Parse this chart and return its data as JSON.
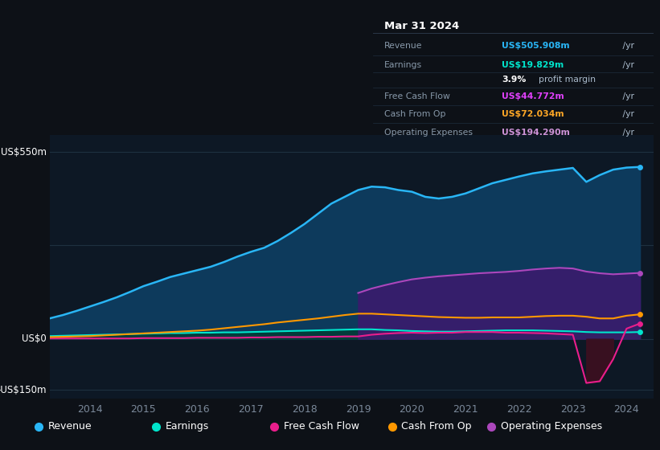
{
  "bg_color": "#0d1117",
  "chart_bg": "#0d1825",
  "title_date": "Mar 31 2024",
  "years": [
    2013.25,
    2013.5,
    2013.75,
    2014.0,
    2014.25,
    2014.5,
    2014.75,
    2015.0,
    2015.25,
    2015.5,
    2015.75,
    2016.0,
    2016.25,
    2016.5,
    2016.75,
    2017.0,
    2017.25,
    2017.5,
    2017.75,
    2018.0,
    2018.25,
    2018.5,
    2018.75,
    2019.0,
    2019.25,
    2019.5,
    2019.75,
    2020.0,
    2020.25,
    2020.5,
    2020.75,
    2021.0,
    2021.25,
    2021.5,
    2021.75,
    2022.0,
    2022.25,
    2022.5,
    2022.75,
    2023.0,
    2023.25,
    2023.5,
    2023.75,
    2024.0,
    2024.25
  ],
  "revenue": [
    60,
    70,
    82,
    95,
    108,
    122,
    138,
    155,
    168,
    182,
    192,
    202,
    212,
    226,
    242,
    256,
    268,
    288,
    312,
    338,
    368,
    398,
    418,
    438,
    448,
    446,
    438,
    433,
    418,
    413,
    418,
    428,
    443,
    458,
    468,
    478,
    487,
    493,
    498,
    503,
    462,
    482,
    498,
    504,
    506
  ],
  "earnings": [
    8,
    9,
    10,
    11,
    12,
    13,
    14,
    15,
    16,
    17,
    17,
    18,
    18,
    19,
    19,
    20,
    21,
    22,
    23,
    24,
    25,
    26,
    27,
    28,
    28,
    26,
    25,
    23,
    22,
    21,
    21,
    22,
    23,
    24,
    25,
    25,
    25,
    24,
    23,
    22,
    20,
    19,
    19,
    19,
    20
  ],
  "free_cash_flow": [
    1,
    1,
    1,
    1,
    1,
    1,
    1,
    2,
    2,
    2,
    2,
    3,
    3,
    3,
    3,
    4,
    4,
    5,
    5,
    5,
    6,
    6,
    7,
    7,
    12,
    15,
    17,
    18,
    17,
    18,
    18,
    20,
    20,
    20,
    18,
    18,
    17,
    16,
    14,
    12,
    -130,
    -125,
    -60,
    30,
    45
  ],
  "cash_from_op": [
    5,
    6,
    7,
    8,
    10,
    12,
    14,
    16,
    18,
    20,
    22,
    24,
    27,
    31,
    35,
    39,
    43,
    48,
    52,
    56,
    60,
    65,
    70,
    74,
    74,
    72,
    70,
    68,
    66,
    64,
    63,
    62,
    62,
    63,
    63,
    63,
    65,
    67,
    68,
    68,
    65,
    60,
    60,
    68,
    72
  ],
  "op_expenses": [
    0,
    0,
    0,
    0,
    0,
    0,
    0,
    0,
    0,
    0,
    0,
    0,
    0,
    0,
    0,
    0,
    0,
    0,
    0,
    0,
    0,
    0,
    0,
    135,
    148,
    158,
    167,
    175,
    180,
    184,
    187,
    190,
    193,
    195,
    197,
    200,
    204,
    207,
    209,
    207,
    198,
    193,
    190,
    192,
    194
  ],
  "revenue_color": "#29b6f6",
  "revenue_fill": "#0d3a5c",
  "earnings_color": "#00e5cc",
  "earnings_fill": "#003d33",
  "fcf_color": "#e91e8c",
  "fcf_neg_fill": "#3d1020",
  "cfo_color": "#ff9800",
  "opex_color": "#ab47bc",
  "opex_fill": "#3d1a6e",
  "ylim_min": -175,
  "ylim_max": 600,
  "legend_items": [
    {
      "label": "Revenue",
      "color": "#29b6f6"
    },
    {
      "label": "Earnings",
      "color": "#00e5cc"
    },
    {
      "label": "Free Cash Flow",
      "color": "#e91e8c"
    },
    {
      "label": "Cash From Op",
      "color": "#ff9800"
    },
    {
      "label": "Operating Expenses",
      "color": "#ab47bc"
    }
  ],
  "info_rows": [
    {
      "label": "Revenue",
      "value": "US$505.908m",
      "suffix": " /yr",
      "color": "#29b6f6"
    },
    {
      "label": "Earnings",
      "value": "US$19.829m",
      "suffix": " /yr",
      "color": "#00e5cc"
    },
    {
      "label": "",
      "value": "3.9%",
      "suffix": " profit margin",
      "color": "white"
    },
    {
      "label": "Free Cash Flow",
      "value": "US$44.772m",
      "suffix": " /yr",
      "color": "#e040fb"
    },
    {
      "label": "Cash From Op",
      "value": "US$72.034m",
      "suffix": " /yr",
      "color": "#ffa726"
    },
    {
      "label": "Operating Expenses",
      "value": "US$194.290m",
      "suffix": " /yr",
      "color": "#ce93d8"
    }
  ]
}
